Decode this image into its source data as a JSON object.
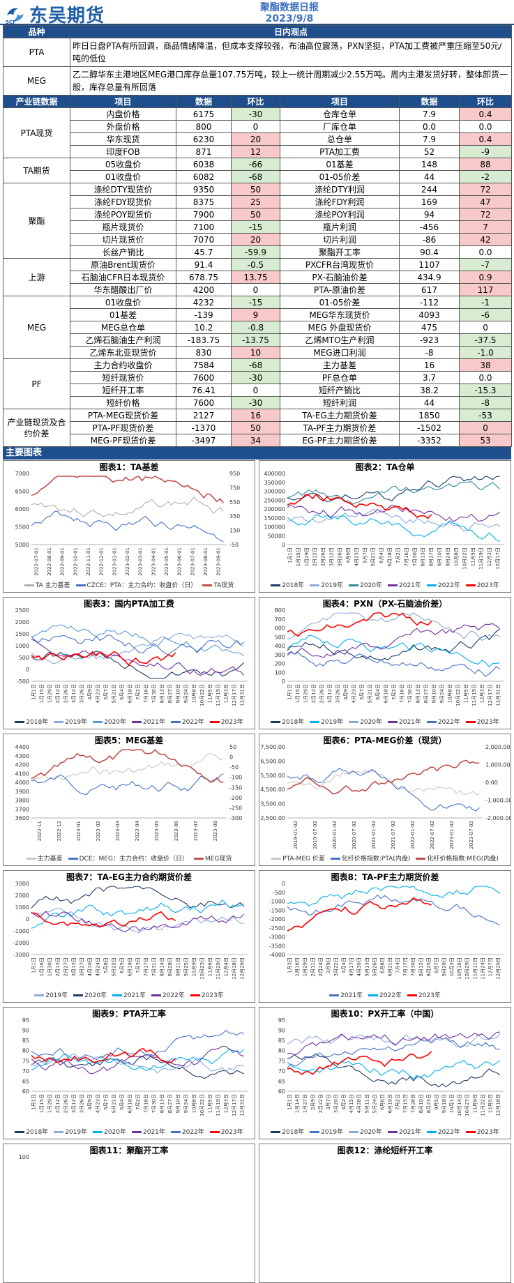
{
  "header": {
    "logo_text": "东吴期货",
    "logo_sub": "SCF",
    "title": "聚酯数据日报",
    "date": "2023/9/8"
  },
  "views": {
    "col1": "品种",
    "col2": "日内观点",
    "rows": [
      {
        "name": "PTA",
        "text": "昨日日盘PTA有所回调，商品情绪降温，但成本支撑较强，布油高位震荡，PXN坚挺，PTA加工费被严重压缩至50元/吨的低位"
      },
      {
        "name": "MEG",
        "text": "乙二醇华东主港地区MEG港口库存总量107.75万吨，较上一统计周期减少2.55万吨。周内主港发货好转，整体卸货一般，库存总量有所回落"
      }
    ]
  },
  "table": {
    "headers": [
      "产业链数据",
      "项目",
      "数据",
      "环比",
      "项目",
      "数据",
      "环比"
    ],
    "groups": [
      {
        "cat": "PTA现货",
        "rows": [
          [
            "内盘价格",
            "6175",
            "-30",
            "g",
            "仓库仓单",
            "7.9",
            "0.4",
            "r"
          ],
          [
            "外盘价格",
            "800",
            "0",
            "",
            "厂库仓单",
            "0.0",
            "0.0",
            ""
          ],
          [
            "华东现货",
            "6230",
            "20",
            "r",
            "总仓单",
            "7.9",
            "0.4",
            "r"
          ],
          [
            "印度FOB",
            "871",
            "12",
            "r",
            "PTA加工费",
            "52",
            "-9",
            "g"
          ]
        ]
      },
      {
        "cat": "TA期货",
        "rows": [
          [
            "05收盘价",
            "6038",
            "-66",
            "g",
            "01基差",
            "148",
            "88",
            "r"
          ],
          [
            "01收盘价",
            "6082",
            "-68",
            "g",
            "01-05价差",
            "44",
            "-2",
            "g"
          ]
        ]
      },
      {
        "cat": "聚酯",
        "rows": [
          [
            "涤纶DTY现货价",
            "9350",
            "50",
            "r",
            "涤纶DTY利润",
            "244",
            "72",
            "r"
          ],
          [
            "涤纶FDY现货价",
            "8375",
            "25",
            "r",
            "涤纶FDY利润",
            "169",
            "47",
            "r"
          ],
          [
            "涤纶POY现货价",
            "7900",
            "50",
            "r",
            "涤纶POY利润",
            "94",
            "72",
            "r"
          ],
          [
            "瓶片现货价",
            "7100",
            "-15",
            "g",
            "瓶片利润",
            "-456",
            "7",
            "r"
          ],
          [
            "切片现货价",
            "7070",
            "20",
            "r",
            "切片利润",
            "-86",
            "42",
            "r"
          ],
          [
            "长丝产销比",
            "45.7",
            "-59.9",
            "g",
            "聚酯开工率",
            "90.4",
            "0.0",
            ""
          ]
        ]
      },
      {
        "cat": "上游",
        "rows": [
          [
            "原油Brent现货价",
            "91.4",
            "-0.5",
            "g",
            "PXCFR台湾现货价",
            "1107",
            "-7",
            "g"
          ],
          [
            "石脑油CFR日本现货价",
            "678.75",
            "13.75",
            "r",
            "PX-石脑油价差",
            "434.9",
            "0.9",
            "r"
          ],
          [
            "华东醋酸出厂价",
            "4200",
            "0",
            "",
            "PTA-原油价差",
            "617",
            "117",
            "r"
          ]
        ]
      },
      {
        "cat": "MEG",
        "rows": [
          [
            "01收盘价",
            "4232",
            "-15",
            "g",
            "01-05价差",
            "-112",
            "-1",
            "g"
          ],
          [
            "01基差",
            "-139",
            "9",
            "r",
            "MEG华东现货价",
            "4093",
            "-6",
            "g"
          ],
          [
            "MEG总仓单",
            "10.2",
            "-0.8",
            "g",
            "MEG 外盘现货价",
            "475",
            "0",
            ""
          ],
          [
            "乙烯石脑油生产利润",
            "-183.75",
            "-13.75",
            "g",
            "乙烯MTO生产利润",
            "-923",
            "-37.5",
            "g"
          ],
          [
            "乙烯东北亚现货价",
            "830",
            "10",
            "r",
            "MEG进口利润",
            "-8",
            "-1.0",
            "g"
          ]
        ]
      },
      {
        "cat": "PF",
        "rows": [
          [
            "主力合约收盘价",
            "7584",
            "-68",
            "g",
            "主力基差",
            "16",
            "38",
            "r"
          ],
          [
            "短纤现货价",
            "7600",
            "-30",
            "g",
            "PF总仓单",
            "3.7",
            "0.0",
            ""
          ],
          [
            "短纤开工率",
            "76.41",
            "0",
            "",
            "短纤产销比",
            "38.2",
            "-15.3",
            "g"
          ],
          [
            "短纤价格",
            "7600",
            "-30",
            "g",
            "短纤利润",
            "44",
            "-8",
            "g"
          ]
        ]
      },
      {
        "cat": "产业链现货及合约价差",
        "rows": [
          [
            "PTA-MEG现货价差",
            "2127",
            "16",
            "r",
            "TA-EG主力期货价差",
            "1850",
            "-53",
            "g"
          ],
          [
            "PTA-PF现货价差",
            "-1370",
            "50",
            "r",
            "TA-PF主力期货价差",
            "-1502",
            "0",
            "r"
          ],
          [
            "MEG-PF现货价差",
            "-3497",
            "34",
            "r",
            "EG-PF主力期货价差",
            "-3352",
            "53",
            "r"
          ]
        ]
      }
    ]
  },
  "section_title": "主要图表",
  "charts": [
    {
      "title": "图表1：TA基差",
      "left_axis": [
        "7000",
        "6500",
        "6000",
        "5500",
        "5000"
      ],
      "right_axis": [
        "950",
        "750",
        "550",
        "350",
        "150",
        "-50"
      ],
      "x": [
        "2022-07-01",
        "2022-08-01",
        "2022-09-01",
        "2022-10-01",
        "2022-11-01",
        "2022-12-01",
        "2023-01-01",
        "2023-02-01",
        "2023-03-01",
        "2023-04-01",
        "2023-05-01",
        "2023-06-01",
        "2023-07-01",
        "2023-08-01",
        "2023-09-01"
      ],
      "legend": [
        "TA 主力基差",
        "CZCE：PTA：主力合约：收盘价（日）",
        "TA现货"
      ],
      "colors": [
        "#b0b0b0",
        "#4472c4",
        "#c0504d"
      ]
    },
    {
      "title": "图表2：TA仓单",
      "left_axis": [
        "400000",
        "350000",
        "300000",
        "250000",
        "200000",
        "150000",
        "100000",
        "50000",
        "0"
      ],
      "right_axis": [],
      "x": [
        "1月1日",
        "1月15日",
        "1月29日",
        "2月12日",
        "2月26日",
        "3月12日",
        "3月26日",
        "4月9日",
        "4月23日",
        "5月7日",
        "5月21日",
        "6月4日",
        "6月18日",
        "7月2日",
        "7月16日",
        "7月30日",
        "8月13日",
        "8月27日",
        "9月10日",
        "9月24日",
        "10月8日",
        "10月22日",
        "11月5日",
        "11月19日",
        "12月3日",
        "12月17日"
      ],
      "legend": [
        "2018年",
        "2019年",
        "2020年",
        "2021年",
        "2022年",
        "2023年"
      ],
      "colors": [
        "#1f3864",
        "#8eaadb",
        "#2e8b9a",
        "#7030a0",
        "#00b0f0",
        "#ff0000"
      ]
    },
    {
      "title": "图表3：国内PTA加工费",
      "left_axis": [
        "2500",
        "2000",
        "1500",
        "1000",
        "500",
        "0",
        "-500"
      ],
      "right_axis": [],
      "x": [
        "1月1日",
        "1月15日",
        "1月29日",
        "2月12日",
        "2月26日",
        "3月12日",
        "3月26日",
        "4月9日",
        "4月23日",
        "5月7日",
        "5月21日",
        "6月4日",
        "6月18日",
        "7月2日",
        "7月16日",
        "7月30日",
        "8月13日",
        "8月27日",
        "9月10日",
        "9月24日",
        "10月8日",
        "10月22日",
        "11月5日",
        "11月19日",
        "12月3日",
        "12月17日",
        "12月31日"
      ],
      "legend": [
        "2018年",
        "2019年",
        "2020年",
        "2021年",
        "2022年",
        "2023年"
      ],
      "colors": [
        "#1f3864",
        "#8eaadb",
        "#5b9bd5",
        "#7030a0",
        "#4472c4",
        "#ff0000"
      ]
    },
    {
      "title": "图表4：PXN（PX-石脑油价差）",
      "left_axis": [
        "800",
        "700",
        "600",
        "500",
        "400",
        "300",
        "200",
        "100",
        "0"
      ],
      "right_axis": [],
      "x": [
        "1月1日",
        "1月15日",
        "1月29日",
        "2月12日",
        "2月26日",
        "3月12日",
        "3月26日",
        "4月9日",
        "4月23日",
        "5月7日",
        "5月21日",
        "6月4日",
        "6月18日",
        "7月2日",
        "7月16日",
        "7月30日",
        "8月13日",
        "8月27日",
        "9月10日",
        "9月24日",
        "10月8日",
        "10月22日",
        "11月5日",
        "11月19日",
        "12月3日",
        "12月17日",
        "12月31日"
      ],
      "legend": [
        "2018年",
        "2019年",
        "2020年",
        "2021年",
        "2022年",
        "2023年"
      ],
      "colors": [
        "#1f3864",
        "#00b0f0",
        "#8eaadb",
        "#7030a0",
        "#4472c4",
        "#ff0000"
      ]
    },
    {
      "title": "图表5：MEG基差",
      "left_axis": [
        "4400",
        "4300",
        "4200",
        "4100",
        "4000",
        "3900",
        "3800",
        "3700",
        "3600"
      ],
      "right_axis": [
        "50",
        "0",
        "-50",
        "-100",
        "-150",
        "-200",
        "-250",
        "-300"
      ],
      "x": [
        "2022-11",
        "2022-12",
        "2023-01",
        "2023-02",
        "2023-03",
        "2023-04",
        "2023-05",
        "2023-06",
        "2023-07",
        "2023-08"
      ],
      "legend": [
        "主力基差",
        "DCE：MEG：主力合约：收盘价（日）",
        "MEG现货"
      ],
      "colors": [
        "#c8c8c8",
        "#4472c4",
        "#c0504d"
      ]
    },
    {
      "title": "图表6：PTA-MEG价差（现货）",
      "left_axis": [
        "7,500.00",
        "6,500.00",
        "5,500.00",
        "4,500.00",
        "3,500.00",
        "2,500.00"
      ],
      "right_axis": [
        "2,000.00",
        "1,000.00",
        "0.00",
        "-1,000.00",
        "-2,000.00"
      ],
      "x": [
        "2019-01-02",
        "2019-07-02",
        "2020-01-02",
        "2020-07-02",
        "2021-01-02",
        "2021-07-02",
        "2022-01-02",
        "2022-07-02",
        "2023-01-02",
        "2023-07-02"
      ],
      "legend": [
        "PTA-MEG 价差",
        "化纤价格指数:PTA(内盘)",
        "化纤价格指数:MEG(内盘)"
      ],
      "colors": [
        "#c8c8c8",
        "#4472c4",
        "#c0504d"
      ]
    },
    {
      "title": "图表7：TA-EG主力合约期货价差",
      "left_axis": [
        "3000",
        "2000",
        "1000",
        "0",
        "-1000",
        "-2000",
        "-3000"
      ],
      "right_axis": [],
      "x": [
        "1月1日",
        "1月16日",
        "1月30日",
        "2月13日",
        "2月27日",
        "3月13日",
        "3月27日",
        "4月10日",
        "4月24日",
        "5月8日",
        "5月22日",
        "6月5日",
        "6月19日",
        "7月3日",
        "7月17日",
        "7月31日",
        "8月14日",
        "8月28日",
        "9月11日",
        "9月25日",
        "10月9日",
        "10月23日",
        "11月6日",
        "11月20日",
        "12月4日",
        "12月18日",
        "12月29日"
      ],
      "legend": [
        "2019年",
        "2020年",
        "2021年",
        "2022年",
        "2023年"
      ],
      "colors": [
        "#8eaadb",
        "#1f3864",
        "#00b0f0",
        "#7030a0",
        "#ff0000"
      ]
    },
    {
      "title": "图表8：TA-PF主力期货价差",
      "left_axis": [
        "0",
        "-500",
        "-1000",
        "-1500",
        "-2000",
        "-2500",
        "-3000",
        "-3500",
        "-4000"
      ],
      "right_axis": [],
      "x": [
        "1月3日",
        "1月16日",
        "1月29日",
        "2月11日",
        "2月24日",
        "3月9日",
        "3月22日",
        "4月4日",
        "4月17日",
        "4月30日",
        "5月13日",
        "5月26日",
        "6月8日",
        "6月21日",
        "7月4日",
        "7月17日",
        "7月30日",
        "8月12日",
        "8月25日",
        "9月7日",
        "9月20日",
        "10月3日",
        "10月16日",
        "10月29日",
        "11月11日",
        "11月24日",
        "12月7日",
        "12月20日"
      ],
      "legend": [
        "2021年",
        "2022年",
        "2023年"
      ],
      "colors": [
        "#4472c4",
        "#00b0f0",
        "#ff0000"
      ]
    },
    {
      "title": "图表9：PTA开工率",
      "left_axis": [
        "95",
        "90",
        "85",
        "80",
        "75",
        "70",
        "65",
        "60"
      ],
      "right_axis": [],
      "x": [
        "1月1日",
        "1月15日",
        "1月29日",
        "2月12日",
        "2月26日",
        "3月12日",
        "3月26日",
        "4月9日",
        "4月23日",
        "5月7日",
        "5月21日",
        "6月4日",
        "6月18日",
        "7月2日",
        "7月16日",
        "7月30日",
        "8月13日",
        "8月27日",
        "9月10日",
        "9月24日",
        "10月8日",
        "10月22日",
        "11月5日",
        "11月19日",
        "12月3日",
        "12月17日",
        "12月31日"
      ],
      "legend": [
        "2018年",
        "2019年",
        "2020年",
        "2021年",
        "2022年",
        "2023年"
      ],
      "colors": [
        "#1f3864",
        "#8eaadb",
        "#00b0f0",
        "#7030a0",
        "#4472c4",
        "#ff0000"
      ]
    },
    {
      "title": "图表10：PX开工率（中国）",
      "left_axis": [
        "95",
        "90",
        "85",
        "80",
        "75",
        "70",
        "65",
        "60"
      ],
      "right_axis": [],
      "x": [
        "1月1日",
        "1月14日",
        "1月27日",
        "2月9日",
        "2月22日",
        "3月7日",
        "3月20日",
        "4月2日",
        "4月15日",
        "4月28日",
        "5月11日",
        "5月24日",
        "6月6日",
        "6月19日",
        "7月2日",
        "7月15日",
        "7月28日",
        "8月10日",
        "8月23日",
        "9月5日",
        "9月18日",
        "10月1日",
        "10月14日",
        "10月27日",
        "11月9日",
        "11月22日",
        "12月5日",
        "12月18日"
      ],
      "legend": [
        "2018年",
        "2019年",
        "2020年",
        "2021年",
        "2022年",
        "2023年"
      ],
      "colors": [
        "#1f3864",
        "#4472c4",
        "#8eaadb",
        "#7030a0",
        "#00b0f0",
        "#ff0000"
      ]
    },
    {
      "title": "图表11：聚酯开工率",
      "left_axis": [
        "100"
      ],
      "right_axis": [],
      "x": [],
      "legend": [],
      "colors": []
    },
    {
      "title": "图表12：涤纶短纤开工率",
      "left_axis": [],
      "right_axis": [],
      "x": [],
      "legend": [],
      "colors": []
    }
  ]
}
